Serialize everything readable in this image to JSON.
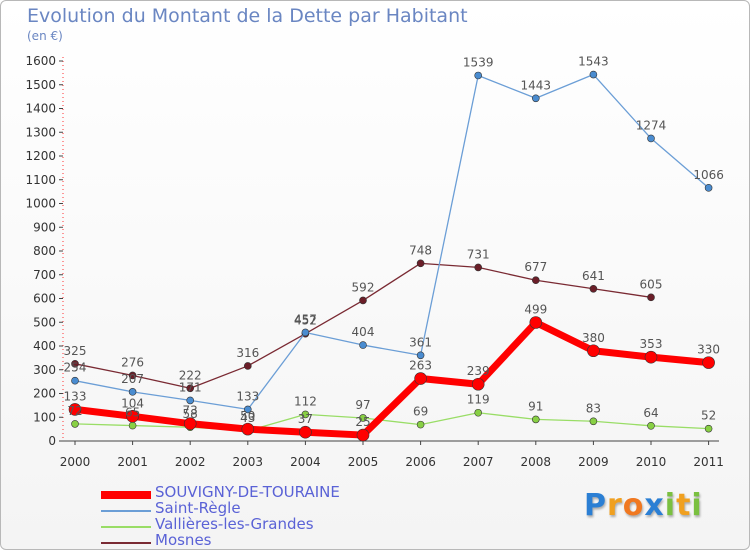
{
  "title": "Evolution du Montant de la Dette par Habitant",
  "subtitle": "(en €)",
  "colors": {
    "title": "#6a86c2",
    "series": [
      "#ff0000",
      "#6b9ed6",
      "#99dd66",
      "#7a2a33"
    ],
    "markers": [
      "#ff0000",
      "#4a8cd0",
      "#88d044",
      "#6b1e28"
    ]
  },
  "chart_data": {
    "type": "line",
    "x": [
      "2000",
      "2001",
      "2002",
      "2003",
      "2004",
      "2005",
      "2006",
      "2007",
      "2008",
      "2009",
      "2010",
      "2011"
    ],
    "ylim": [
      0,
      1600
    ],
    "yticks": [
      0,
      100,
      200,
      300,
      400,
      500,
      600,
      700,
      800,
      900,
      1000,
      1100,
      1200,
      1300,
      1400,
      1500,
      1600
    ],
    "grid": false,
    "legend": "bottom-left",
    "series": [
      {
        "name": "SOUVIGNY-DE-TOURAINE",
        "values": [
          133,
          104,
          73,
          50,
          37,
          25,
          263,
          239,
          499,
          380,
          353,
          330
        ]
      },
      {
        "name": "Saint-Règle",
        "values": [
          254,
          207,
          171,
          133,
          457,
          404,
          361,
          1539,
          1443,
          1543,
          1274,
          1066
        ]
      },
      {
        "name": "Vallières-les-Grandes",
        "values": [
          72,
          65,
          58,
          43,
          112,
          97,
          69,
          119,
          91,
          83,
          64,
          52
        ]
      },
      {
        "name": "Mosnes",
        "values": [
          325,
          276,
          222,
          316,
          452,
          592,
          748,
          731,
          677,
          641,
          605,
          null
        ]
      }
    ]
  },
  "logo": {
    "letters": [
      "P",
      "r",
      "o",
      "x",
      "i",
      "t",
      "i"
    ],
    "colors": [
      "#2b7fd4",
      "#f0a020",
      "#f07820",
      "#2b7fd4",
      "#7ac040",
      "#f0a020",
      "#7ac040"
    ]
  }
}
